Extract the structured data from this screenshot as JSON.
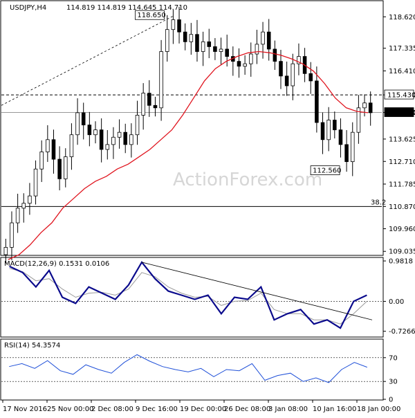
{
  "header": {
    "symbol": "USDJPY,H4",
    "ohlc": "114.819 114.819 114.645 114.710"
  },
  "watermark": "ActionForex.com",
  "colors": {
    "price": "#000000",
    "ema": "#e0141e",
    "macd": "#0a0a8c",
    "signal": "#9a9a9a",
    "rsi": "#1e4fd8",
    "grid": "#000000",
    "watermark": "#d6d6d6"
  },
  "chart_data": [
    {
      "type": "candlestick",
      "panel": "price",
      "y_ticks": [
        "118.620",
        "117.335",
        "116.410",
        "115.430",
        "114.710",
        "113.625",
        "112.710",
        "111.785",
        "110.870",
        "109.960",
        "109.035"
      ],
      "ylim": [
        108.9,
        119.25
      ],
      "x_ticks": [
        "17 Nov 2016",
        "25 Nov 00:00",
        "2 Dec 08:00",
        "9 Dec 16:00",
        "19 Dec 00:00",
        "26 Dec 08:00",
        "3 Jan 08:00",
        "10 Jan 16:00",
        "18 Jan 00:00"
      ],
      "close_series": [
        109.2,
        110.2,
        110.8,
        111.0,
        111.3,
        112.4,
        113.1,
        113.6,
        112.8,
        112.0,
        112.9,
        113.8,
        114.7,
        114.2,
        113.8,
        114.0,
        113.2,
        113.4,
        113.7,
        113.9,
        113.4,
        113.8,
        114.6,
        115.5,
        115.0,
        114.9,
        117.2,
        118.1,
        118.5,
        118.0,
        117.6,
        117.9,
        117.2,
        117.6,
        117.4,
        117.2,
        117.3,
        117.0,
        116.8,
        116.6,
        116.7,
        117.1,
        117.5,
        118.0,
        117.3,
        116.8,
        116.2,
        115.8,
        116.7,
        117.0,
        116.3,
        116.0,
        114.3,
        113.6,
        114.4,
        114.0,
        113.4,
        112.7,
        113.9,
        114.9,
        115.1,
        114.7
      ],
      "ema_series": [
        108.7,
        108.9,
        109.3,
        109.8,
        110.2,
        110.8,
        111.2,
        111.6,
        111.9,
        112.1,
        112.4,
        112.6,
        112.9,
        113.2,
        113.6,
        114.0,
        114.6,
        115.3,
        116.0,
        116.5,
        116.8,
        117.0,
        117.15,
        117.2,
        117.15,
        117.05,
        116.9,
        116.7,
        116.4,
        115.9,
        115.3,
        114.9,
        114.75,
        114.7
      ],
      "ema_label": "",
      "levels": [
        {
          "value": 115.43,
          "label": "115.430",
          "style": "dashed"
        },
        {
          "value": 114.71,
          "label": "114.710",
          "style": "solid-light"
        },
        {
          "value": 110.87,
          "label": "38.2",
          "style": "solid"
        }
      ],
      "annotations": [
        {
          "label": "118.650",
          "value": 118.65
        },
        {
          "label": "112.560",
          "value": 112.56
        }
      ],
      "trendline": "dotted rising line toward 118.650 high",
      "legend": "none"
    },
    {
      "type": "line",
      "panel": "macd",
      "label": "MACD(12,26,9) 0.1531 0.0106",
      "y_ticks": [
        "0.9818",
        "0.00",
        "-0.7266"
      ],
      "ylim": [
        -0.85,
        1.05
      ],
      "macd_series": [
        0.85,
        0.7,
        0.35,
        0.75,
        0.1,
        -0.05,
        0.35,
        0.2,
        0.05,
        0.4,
        0.95,
        0.55,
        0.25,
        0.15,
        0.05,
        0.15,
        -0.3,
        0.1,
        0.05,
        0.35,
        -0.45,
        -0.3,
        -0.2,
        -0.55,
        -0.45,
        -0.65,
        0.0,
        0.15
      ],
      "signal_series": [
        0.8,
        0.72,
        0.5,
        0.55,
        0.3,
        0.1,
        0.2,
        0.22,
        0.15,
        0.3,
        0.7,
        0.6,
        0.35,
        0.2,
        0.1,
        0.12,
        -0.1,
        0.0,
        0.02,
        0.2,
        -0.2,
        -0.3,
        -0.3,
        -0.45,
        -0.45,
        -0.55,
        -0.3,
        0.0
      ],
      "trendline": "descending line from MACD peak"
    },
    {
      "type": "line",
      "panel": "rsi",
      "label": "RSI(14) 54.3574",
      "y_ticks": [
        "70",
        "30",
        "0"
      ],
      "ylim": [
        0,
        100
      ],
      "reference_lines": [
        70,
        30
      ],
      "rsi_series": [
        55,
        60,
        52,
        65,
        48,
        42,
        58,
        50,
        44,
        62,
        75,
        64,
        55,
        50,
        46,
        52,
        38,
        50,
        48,
        60,
        32,
        40,
        44,
        30,
        36,
        28,
        50,
        62,
        54
      ]
    }
  ]
}
